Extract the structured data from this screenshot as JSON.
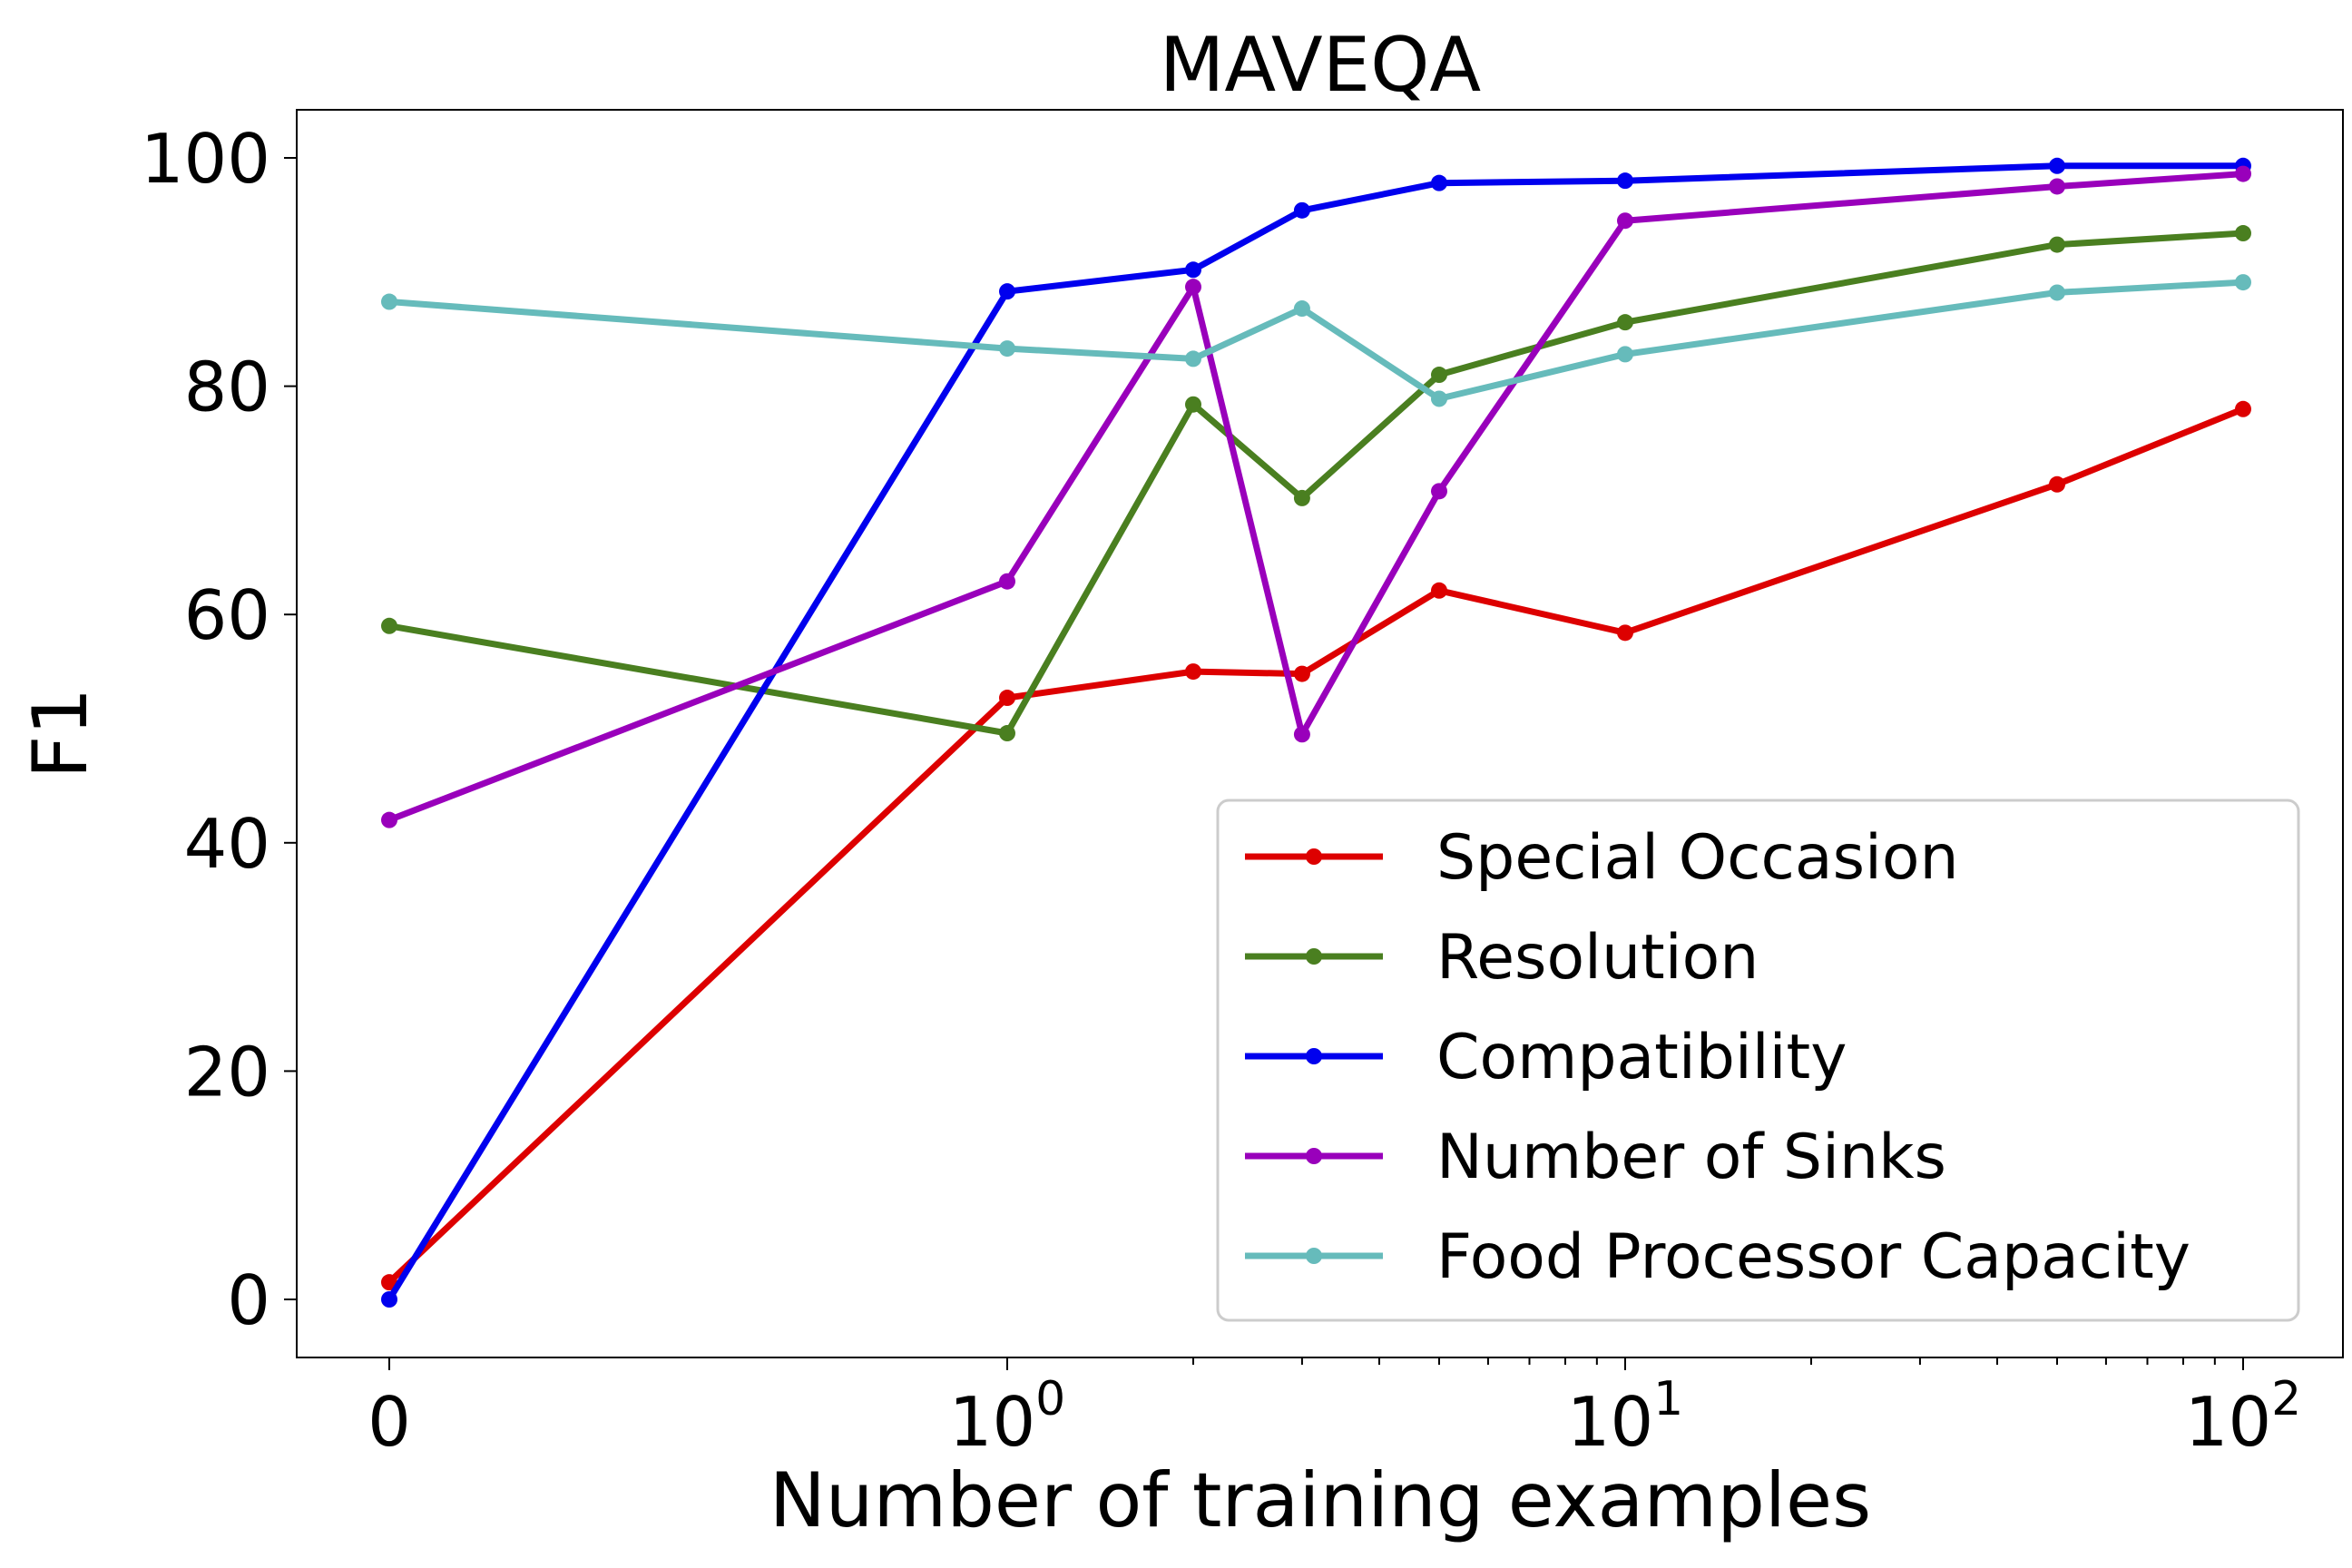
{
  "chart_data": {
    "type": "line",
    "title": "MAVEQA",
    "xlabel": "Number of training examples",
    "ylabel": "F1",
    "xscale": "symlog",
    "x": [
      0,
      1,
      2,
      3,
      5,
      10,
      50,
      100
    ],
    "x_ticks": [
      {
        "value": 0,
        "base": "0",
        "exp": ""
      },
      {
        "value": 1,
        "base": "10",
        "exp": "0"
      },
      {
        "value": 10,
        "base": "10",
        "exp": "1"
      },
      {
        "value": 100,
        "base": "10",
        "exp": "2"
      }
    ],
    "y_ticks": [
      0,
      20,
      40,
      60,
      80,
      100
    ],
    "ylim": [
      -5,
      104.5
    ],
    "legend_position": "lower-right",
    "series": [
      {
        "name": "Special Occasion",
        "color": "#dd0000",
        "values": [
          1.5,
          52.7,
          55.0,
          54.8,
          62.1,
          58.4,
          71.4,
          78.0
        ]
      },
      {
        "name": "Resolution",
        "color": "#4a7f20",
        "values": [
          59.0,
          49.6,
          78.4,
          70.2,
          81.0,
          85.6,
          92.4,
          93.4
        ]
      },
      {
        "name": "Compatibility",
        "color": "#0000ee",
        "values": [
          0.0,
          88.3,
          90.2,
          95.4,
          97.8,
          98.0,
          99.3,
          99.3
        ]
      },
      {
        "name": "Number of Sinks",
        "color": "#9900bb",
        "values": [
          42.0,
          62.9,
          88.7,
          49.5,
          70.8,
          94.5,
          97.5,
          98.6
        ]
      },
      {
        "name": "Food Processor Capacity",
        "color": "#66bbbb",
        "values": [
          87.4,
          83.3,
          82.4,
          86.8,
          78.9,
          82.8,
          88.2,
          89.1
        ]
      }
    ]
  }
}
